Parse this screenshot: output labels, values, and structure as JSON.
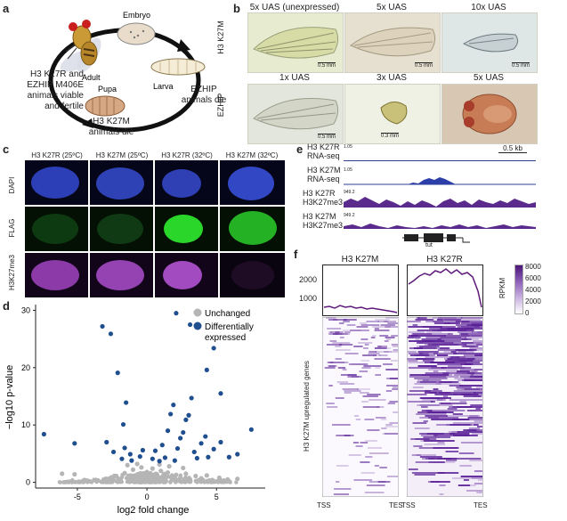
{
  "panel_a": {
    "label": "a",
    "stages": [
      "Embryo",
      "Larva",
      "Pupa",
      "Adult"
    ],
    "text_left": [
      "H3 K27R and",
      "EZHIP M406E",
      "animals viable",
      "and fertile"
    ],
    "text_bottom": [
      "H3 K27M",
      "animals die"
    ],
    "text_right": [
      "EZHIP",
      "animals die"
    ]
  },
  "panel_b": {
    "label": "b",
    "row_labels": [
      "H3 K27M",
      "EZHIP"
    ],
    "row1_titles": [
      "5x UAS (unexpressed)",
      "5x UAS",
      "10x UAS"
    ],
    "row2_titles": [
      "1x UAS",
      "3x UAS",
      "5x UAS"
    ],
    "scale_labels": [
      "0.5 mm",
      "0.5 mm",
      "0.5 mm",
      "0.5 mm",
      "0.3 mm"
    ]
  },
  "panel_c": {
    "label": "c",
    "columns": [
      "H3 K27R (25ºC)",
      "H3 K27M (25ºC)",
      "H3 K27R (32ºC)",
      "H3 K27M (32ºC)"
    ],
    "rows": [
      "DAPI",
      "FLAG",
      "H3K27me3"
    ]
  },
  "panel_e": {
    "label": "e",
    "scale": "0.5 kb",
    "tracks": [
      {
        "line1": "H3 K27R",
        "line2": "RNA-seq",
        "max": "1.05"
      },
      {
        "line1": "H3 K27M",
        "line2": "RNA-seq",
        "max": "1.05"
      },
      {
        "line1": "H3 K27R",
        "line2": "H3K27me3",
        "max": "949.2"
      },
      {
        "line1": "H3 K27M",
        "line2": "H3K27me3",
        "max": "949.2"
      }
    ],
    "gene": "tut"
  },
  "panel_f": {
    "label": "f",
    "titles": [
      "H3 K27M",
      "H3 K27R"
    ],
    "y_ticks": [
      "2000",
      "1000"
    ],
    "ylabel": "H3 K27M upregulated genes",
    "x_left": [
      "TSS",
      "TES"
    ],
    "x_right": [
      "TSS",
      "TES"
    ],
    "colorbar_title": "RPKM",
    "colorbar_ticks": [
      "8000",
      "6000",
      "4000",
      "2000",
      "0"
    ]
  },
  "chart_data": {
    "type": "scatter",
    "label": "d",
    "title": "",
    "xlabel": "log2 fold change",
    "ylabel": "−log10 p-value",
    "xlim": [
      -8,
      8.5
    ],
    "ylim": [
      -1,
      31
    ],
    "x_ticks": [
      -5,
      0,
      5
    ],
    "y_ticks": [
      0,
      10,
      20,
      30
    ],
    "legend": [
      "Unchanged",
      "Differentially expressed"
    ],
    "series": [
      {
        "name": "Unchanged",
        "color": "#b5b5b5",
        "points": [
          [
            -3.5,
            0.3
          ],
          [
            -3.0,
            0.6
          ],
          [
            -2.6,
            0.2
          ],
          [
            -2.2,
            1.1
          ],
          [
            -1.9,
            0.5
          ],
          [
            -1.6,
            1.6
          ],
          [
            -1.3,
            0.8
          ],
          [
            -1.0,
            2.2
          ],
          [
            -0.8,
            0.4
          ],
          [
            -0.6,
            1.4
          ],
          [
            -0.4,
            2.6
          ],
          [
            -0.2,
            0.9
          ],
          [
            0,
            1.8
          ],
          [
            0.2,
            0.3
          ],
          [
            0.4,
            2.4
          ],
          [
            0.6,
            1.2
          ],
          [
            0.8,
            0.6
          ],
          [
            1.0,
            2.0
          ],
          [
            1.2,
            1.0
          ],
          [
            1.5,
            1.7
          ],
          [
            1.8,
            0.4
          ],
          [
            2.1,
            1.3
          ],
          [
            2.4,
            0.8
          ],
          [
            2.8,
            1.5
          ],
          [
            3.1,
            0.5
          ],
          [
            3.5,
            1.1
          ],
          [
            3.9,
            0.7
          ],
          [
            4.3,
            1.2
          ],
          [
            4.7,
            0.4
          ],
          [
            5.2,
            0.8
          ],
          [
            5.8,
            0.5
          ],
          [
            -4.5,
            0.4
          ],
          [
            -5.2,
            1.4
          ],
          [
            -6.1,
            1.5
          ],
          [
            6.5,
            0.6
          ],
          [
            -1.4,
            3.0
          ],
          [
            1.6,
            2.8
          ],
          [
            0.9,
            3.1
          ],
          [
            -0.7,
            3.2
          ],
          [
            2.6,
            2.5
          ]
        ]
      },
      {
        "name": "Differentially expressed",
        "color": "#1f4f8f",
        "points": [
          [
            -7.4,
            8.4
          ],
          [
            -5.2,
            6.8
          ],
          [
            -3.2,
            27.2
          ],
          [
            -2.6,
            25.9
          ],
          [
            -2.1,
            19.1
          ],
          [
            -1.2,
            4.9
          ],
          [
            -2.4,
            5.3
          ],
          [
            -2.9,
            7.0
          ],
          [
            -1.7,
            10.1
          ],
          [
            -1.5,
            13.9
          ],
          [
            -1.8,
            4.1
          ],
          [
            -1.6,
            6.0
          ],
          [
            -0.5,
            4.5
          ],
          [
            -0.3,
            5.6
          ],
          [
            -1.1,
            3.8
          ],
          [
            0.4,
            4.1
          ],
          [
            0.6,
            5.5
          ],
          [
            0.9,
            3.7
          ],
          [
            1.1,
            6.5
          ],
          [
            1.3,
            4.3
          ],
          [
            1.5,
            9.0
          ],
          [
            1.7,
            11.9
          ],
          [
            1.9,
            13.5
          ],
          [
            2.0,
            3.8
          ],
          [
            2.2,
            5.9
          ],
          [
            2.4,
            7.7
          ],
          [
            2.6,
            8.7
          ],
          [
            2.8,
            10.9
          ],
          [
            3.0,
            11.7
          ],
          [
            3.2,
            14.7
          ],
          [
            3.4,
            5.3
          ],
          [
            3.6,
            4.2
          ],
          [
            3.9,
            6.8
          ],
          [
            4.2,
            8.0
          ],
          [
            4.4,
            4.4
          ],
          [
            4.8,
            5.8
          ],
          [
            5.3,
            7.0
          ],
          [
            5.9,
            4.4
          ],
          [
            6.5,
            4.9
          ],
          [
            7.5,
            9.2
          ],
          [
            2.1,
            29.5
          ],
          [
            3.1,
            27.5
          ],
          [
            4.3,
            19.6
          ],
          [
            4.8,
            23.4
          ],
          [
            5.3,
            15.5
          ]
        ]
      }
    ]
  }
}
